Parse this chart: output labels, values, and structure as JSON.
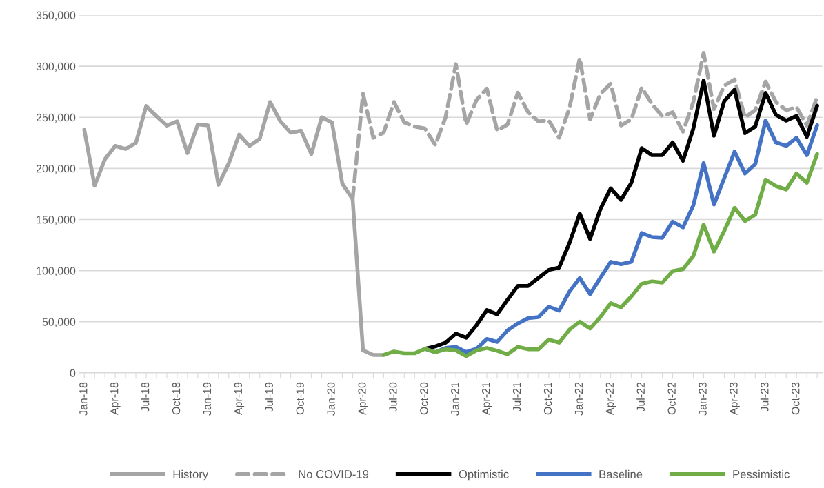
{
  "chart_data": {
    "type": "line",
    "categories": [
      "Jan-18",
      null,
      null,
      "Apr-18",
      null,
      null,
      "Jul-18",
      null,
      null,
      "Oct-18",
      null,
      null,
      "Jan-19",
      null,
      null,
      "Apr-19",
      null,
      null,
      "Jul-19",
      null,
      null,
      "Oct-19",
      null,
      null,
      "Jan-20",
      null,
      null,
      "Apr-20",
      null,
      null,
      "Jul-20",
      null,
      null,
      "Oct-20",
      null,
      null,
      "Jan-21",
      null,
      null,
      "Apr-21",
      null,
      null,
      "Jul-21",
      null,
      null,
      "Oct-21",
      null,
      null,
      "Jan-22",
      null,
      null,
      "Apr-22",
      null,
      null,
      "Jul-22",
      null,
      null,
      "Oct-22",
      null,
      null,
      "Jan-23",
      null,
      null,
      "Apr-23",
      null,
      null,
      "Jul-23",
      null,
      null,
      "Oct-23",
      null,
      null
    ],
    "series": [
      {
        "name": "History",
        "color": "#a5a5a5",
        "line_style": "solid",
        "values": [
          238000,
          183000,
          209000,
          222000,
          219000,
          225000,
          261000,
          251000,
          242000,
          246000,
          215000,
          243000,
          242000,
          184000,
          205000,
          233000,
          222000,
          229000,
          265000,
          246000,
          235000,
          237000,
          214000,
          250000,
          245000,
          185000,
          170000,
          22000,
          17500,
          17500,
          null,
          null,
          null,
          null,
          null,
          null,
          null,
          null,
          null,
          null,
          null,
          null,
          null,
          null,
          null,
          null,
          null,
          null,
          null,
          null,
          null,
          null,
          null,
          null,
          null,
          null,
          null,
          null,
          null,
          null,
          null,
          null,
          null,
          null,
          null,
          null,
          null,
          null,
          null,
          null,
          null,
          null
        ]
      },
      {
        "name": "No COVID-19",
        "color": "#a5a5a5",
        "line_style": "dashed",
        "values": [
          null,
          null,
          null,
          null,
          null,
          null,
          null,
          null,
          null,
          null,
          null,
          null,
          null,
          null,
          null,
          null,
          null,
          null,
          null,
          null,
          null,
          null,
          null,
          null,
          null,
          null,
          170000,
          273000,
          230000,
          235000,
          265000,
          245000,
          241000,
          239000,
          223000,
          250000,
          302000,
          243000,
          267000,
          278000,
          237000,
          243000,
          274000,
          255000,
          246000,
          247000,
          230000,
          259000,
          308000,
          248000,
          273000,
          283000,
          242000,
          248000,
          279000,
          263000,
          251000,
          255000,
          236000,
          265000,
          313000,
          258000,
          281000,
          287000,
          250000,
          257000,
          285000,
          265000,
          257000,
          260000,
          242000,
          270000
        ]
      },
      {
        "name": "Optimistic",
        "color": "#000000",
        "line_style": "solid",
        "values": [
          null,
          null,
          null,
          null,
          null,
          null,
          null,
          null,
          null,
          null,
          null,
          null,
          null,
          null,
          null,
          null,
          null,
          null,
          null,
          null,
          null,
          null,
          null,
          null,
          null,
          null,
          null,
          null,
          null,
          null,
          null,
          null,
          null,
          23600,
          25800,
          29500,
          38400,
          34400,
          46700,
          61400,
          57300,
          71500,
          85000,
          85000,
          92800,
          100700,
          103000,
          127000,
          155800,
          131000,
          160300,
          180500,
          169200,
          186000,
          219800,
          213000,
          213000,
          225400,
          207500,
          239000,
          286000,
          232000,
          265900,
          277000,
          234500,
          241000,
          273800,
          252400,
          246800,
          251300,
          231000,
          261400
        ]
      },
      {
        "name": "Baseline",
        "color": "#4472c4",
        "line_style": "solid",
        "values": [
          null,
          null,
          null,
          null,
          null,
          null,
          null,
          null,
          null,
          null,
          null,
          null,
          null,
          null,
          null,
          null,
          null,
          null,
          null,
          null,
          null,
          null,
          null,
          null,
          null,
          null,
          null,
          null,
          null,
          null,
          null,
          null,
          null,
          23600,
          20200,
          24300,
          25400,
          20400,
          23600,
          33200,
          30300,
          41600,
          48300,
          53500,
          54600,
          64700,
          60900,
          79400,
          92800,
          77000,
          93000,
          108600,
          106300,
          108600,
          136700,
          132800,
          132200,
          147900,
          142300,
          163700,
          205200,
          164700,
          190600,
          216500,
          195000,
          204100,
          246800,
          225400,
          222000,
          230000,
          213000,
          242300
        ]
      },
      {
        "name": "Pessimistic",
        "color": "#70ad47",
        "line_style": "solid",
        "values": [
          null,
          null,
          null,
          null,
          null,
          null,
          null,
          null,
          null,
          null,
          null,
          null,
          null,
          null,
          null,
          null,
          null,
          null,
          null,
          null,
          null,
          null,
          null,
          null,
          null,
          null,
          null,
          null,
          null,
          17500,
          20900,
          19100,
          19100,
          23600,
          20200,
          23100,
          22000,
          16400,
          22000,
          24300,
          21600,
          18200,
          25400,
          23100,
          23100,
          32600,
          29500,
          42300,
          50100,
          43400,
          54600,
          68100,
          64000,
          74800,
          87200,
          89500,
          88300,
          99600,
          101400,
          114200,
          145000,
          118700,
          138900,
          161400,
          148600,
          154600,
          189000,
          182700,
          179400,
          195000,
          186000,
          214200
        ]
      }
    ],
    "ylim": [
      0,
      350000
    ],
    "yticks": [
      0,
      {
        "value": 50000,
        "label": "50,000"
      },
      {
        "value": 100000,
        "label": "100,000"
      },
      {
        "value": 150000,
        "label": "150,000"
      },
      {
        "value": 200000,
        "label": "200,000"
      },
      {
        "value": 250000,
        "label": "250,000"
      },
      {
        "value": 300000,
        "label": "300,000"
      },
      {
        "value": 350000,
        "label": "350,000"
      }
    ],
    "grid": "y",
    "legend": "bottom",
    "marker": "none"
  }
}
